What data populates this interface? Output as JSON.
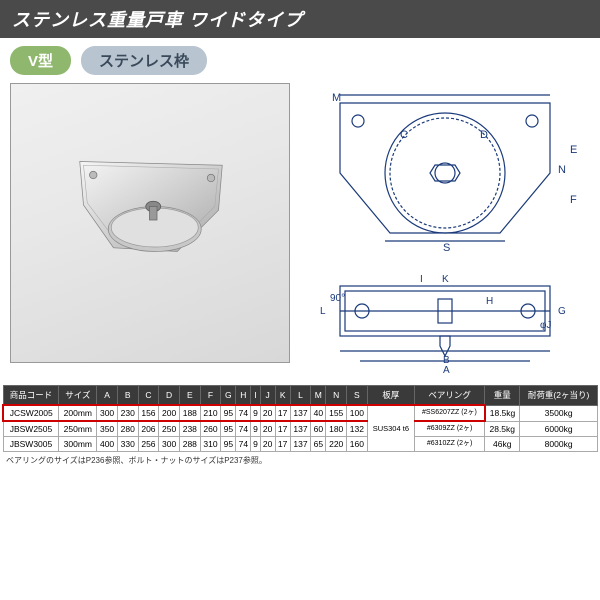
{
  "title": "ステンレス重量戸車 ワイドタイプ",
  "badges": {
    "v": "V型",
    "s": "ステンレス枠"
  },
  "diagram_labels": {
    "top": [
      "M",
      "C",
      "D",
      "S",
      "E",
      "N",
      "F"
    ],
    "bottom": [
      "L",
      "90°",
      "I",
      "K",
      "H",
      "φJ",
      "G",
      "A",
      "B"
    ]
  },
  "table": {
    "headers": [
      "商品コード",
      "サイズ",
      "A",
      "B",
      "C",
      "D",
      "E",
      "F",
      "G",
      "H",
      "I",
      "J",
      "K",
      "L",
      "M",
      "N",
      "S",
      "板厚",
      "ベアリング",
      "重量",
      "耐荷重(2ヶ当り)"
    ],
    "rows": [
      {
        "code": "JCSW2005",
        "size": "200mm",
        "A": "300",
        "B": "230",
        "C": "156",
        "D": "200",
        "E": "188",
        "F": "210",
        "G": "95",
        "H": "74",
        "I": "9",
        "J": "20",
        "K": "17",
        "L": "137",
        "M": "40",
        "N": "155",
        "S": "100",
        "bearing": "#SS6207ZZ (2ヶ)",
        "weight": "18.5kg",
        "load": "3500kg",
        "hl": true
      },
      {
        "code": "JBSW2505",
        "size": "250mm",
        "A": "350",
        "B": "280",
        "C": "206",
        "D": "250",
        "E": "238",
        "F": "260",
        "G": "95",
        "H": "74",
        "I": "9",
        "J": "20",
        "K": "17",
        "L": "137",
        "M": "60",
        "N": "180",
        "S": "132",
        "bearing": "#6309ZZ (2ヶ)",
        "weight": "28.5kg",
        "load": "6000kg",
        "hl": false
      },
      {
        "code": "JBSW3005",
        "size": "300mm",
        "A": "400",
        "B": "330",
        "C": "256",
        "D": "300",
        "E": "288",
        "F": "310",
        "G": "95",
        "H": "74",
        "I": "9",
        "J": "20",
        "K": "17",
        "L": "137",
        "M": "65",
        "N": "220",
        "S": "160",
        "bearing": "#6310ZZ (2ヶ)",
        "weight": "46kg",
        "load": "8000kg",
        "hl": false
      }
    ],
    "plate_thickness": "SUS304 t6"
  },
  "footnote": "ベアリングのサイズはP236参照、ボルト・ナットのサイズはP237参照。"
}
